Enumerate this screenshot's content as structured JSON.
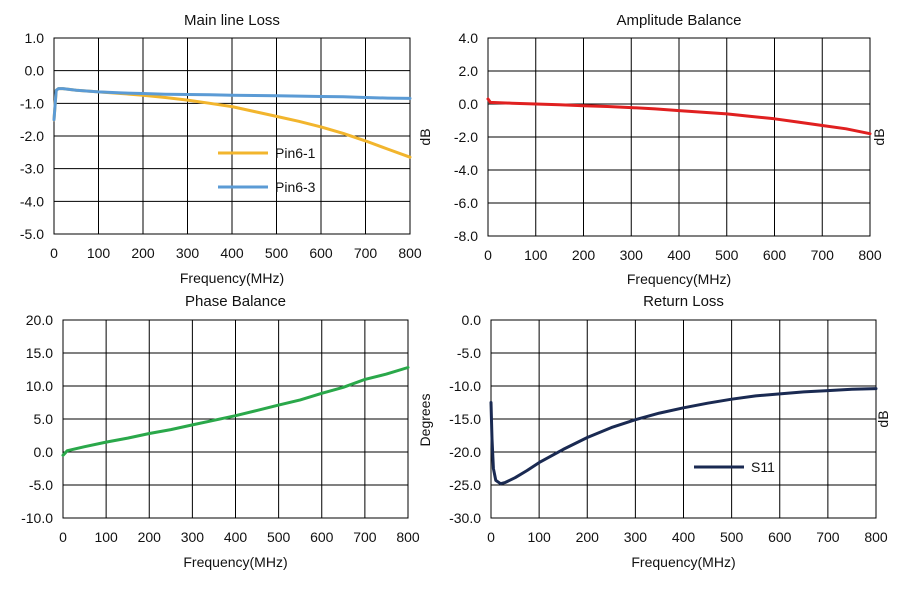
{
  "chart_data": [
    {
      "id": "main-line-loss",
      "type": "line",
      "title": "Main line Loss",
      "xlabel": "Frequency(MHz)",
      "ylabel": "",
      "xlim": [
        0,
        800
      ],
      "ylim": [
        -5.0,
        1.0
      ],
      "xticks": [
        0,
        100,
        200,
        300,
        400,
        500,
        600,
        700,
        800
      ],
      "yticks": [
        1.0,
        0.0,
        -1.0,
        -2.0,
        -3.0,
        -4.0,
        -5.0
      ],
      "xtick_labels": [
        "0",
        "100",
        "200",
        "300",
        "400",
        "500",
        "600",
        "700",
        "800"
      ],
      "ytick_labels": [
        "1.0",
        "0.0",
        "-1.0",
        "-2.0",
        "-3.0",
        "-4.0",
        "-5.0"
      ],
      "grid": true,
      "legend": "center",
      "series": [
        {
          "name": "Pin6-1",
          "color": "#f2b52d",
          "x": [
            0,
            5,
            10,
            20,
            50,
            100,
            150,
            200,
            250,
            300,
            350,
            400,
            450,
            500,
            550,
            600,
            650,
            700,
            750,
            800
          ],
          "values": [
            -1.5,
            -0.6,
            -0.55,
            -0.55,
            -0.6,
            -0.65,
            -0.7,
            -0.75,
            -0.82,
            -0.9,
            -1.0,
            -1.1,
            -1.25,
            -1.4,
            -1.55,
            -1.72,
            -1.92,
            -2.15,
            -2.4,
            -2.65
          ]
        },
        {
          "name": "Pin6-3",
          "color": "#5b9bd5",
          "x": [
            0,
            5,
            10,
            20,
            50,
            100,
            150,
            200,
            250,
            300,
            350,
            400,
            450,
            500,
            550,
            600,
            650,
            700,
            750,
            800
          ],
          "values": [
            -1.5,
            -0.6,
            -0.55,
            -0.55,
            -0.6,
            -0.65,
            -0.68,
            -0.7,
            -0.72,
            -0.73,
            -0.74,
            -0.75,
            -0.76,
            -0.77,
            -0.78,
            -0.79,
            -0.8,
            -0.82,
            -0.84,
            -0.85
          ]
        }
      ]
    },
    {
      "id": "amplitude-balance",
      "type": "line",
      "title": "Amplitude Balance",
      "xlabel": "Frequency(MHz)",
      "ylabel": "dB",
      "xlim": [
        0,
        800
      ],
      "ylim": [
        -8.0,
        4.0
      ],
      "xticks": [
        0,
        100,
        200,
        300,
        400,
        500,
        600,
        700,
        800
      ],
      "yticks": [
        4.0,
        2.0,
        0.0,
        -2.0,
        -4.0,
        -6.0,
        -8.0
      ],
      "xtick_labels": [
        "0",
        "100",
        "200",
        "300",
        "400",
        "500",
        "600",
        "700",
        "800"
      ],
      "ytick_labels": [
        "4.0",
        "2.0",
        "0.0",
        "-2.0",
        "-4.0",
        "-6.0",
        "-8.0"
      ],
      "grid": true,
      "series": [
        {
          "name": "Amplitude Balance",
          "color": "#e02020",
          "x": [
            0,
            5,
            50,
            100,
            150,
            200,
            250,
            300,
            350,
            400,
            450,
            500,
            550,
            600,
            650,
            700,
            750,
            800
          ],
          "values": [
            0.3,
            0.1,
            0.05,
            0.0,
            -0.05,
            -0.1,
            -0.15,
            -0.22,
            -0.3,
            -0.4,
            -0.5,
            -0.6,
            -0.75,
            -0.9,
            -1.1,
            -1.3,
            -1.5,
            -1.8
          ]
        }
      ]
    },
    {
      "id": "phase-balance",
      "type": "line",
      "title": "Phase Balance",
      "xlabel": "Frequency(MHz)",
      "ylabel": "Degrees",
      "xlim": [
        0,
        800
      ],
      "ylim": [
        -10.0,
        20.0
      ],
      "xticks": [
        0,
        100,
        200,
        300,
        400,
        500,
        600,
        700,
        800
      ],
      "yticks": [
        20.0,
        15.0,
        10.0,
        5.0,
        0.0,
        -5.0,
        -10.0
      ],
      "xtick_labels": [
        "0",
        "100",
        "200",
        "300",
        "400",
        "500",
        "600",
        "700",
        "800"
      ],
      "ytick_labels": [
        "20.0",
        "15.0",
        "10.0",
        "5.0",
        "0.0",
        "-5.0",
        "-10.0"
      ],
      "grid": true,
      "series": [
        {
          "name": "Phase Balance",
          "color": "#2aa84a",
          "x": [
            0,
            10,
            50,
            100,
            150,
            200,
            250,
            300,
            350,
            400,
            450,
            500,
            550,
            600,
            650,
            700,
            750,
            800
          ],
          "values": [
            -0.5,
            0.2,
            0.8,
            1.5,
            2.1,
            2.8,
            3.4,
            4.1,
            4.8,
            5.5,
            6.3,
            7.1,
            7.9,
            8.9,
            9.8,
            11.0,
            11.8,
            12.8
          ]
        }
      ]
    },
    {
      "id": "return-loss",
      "type": "line",
      "title": "Return Loss",
      "xlabel": "Frequency(MHz)",
      "ylabel": "dB",
      "xlim": [
        0,
        800
      ],
      "ylim": [
        -30.0,
        0.0
      ],
      "xticks": [
        0,
        100,
        200,
        300,
        400,
        500,
        600,
        700,
        800
      ],
      "yticks": [
        0.0,
        -5.0,
        -10.0,
        -15.0,
        -20.0,
        -25.0,
        -30.0
      ],
      "xtick_labels": [
        "0",
        "100",
        "200",
        "300",
        "400",
        "500",
        "600",
        "700",
        "800"
      ],
      "ytick_labels": [
        "0.0",
        "-5.0",
        "-10.0",
        "-15.0",
        "-20.0",
        "-25.0",
        "-30.0"
      ],
      "grid": true,
      "legend": "center",
      "series": [
        {
          "name": "S11",
          "color": "#1a2a52",
          "x": [
            0,
            2,
            5,
            10,
            20,
            30,
            50,
            75,
            100,
            150,
            200,
            250,
            300,
            350,
            400,
            450,
            500,
            550,
            600,
            650,
            700,
            750,
            800
          ],
          "values": [
            -12.5,
            -18.0,
            -22.5,
            -24.3,
            -24.8,
            -24.6,
            -23.9,
            -22.8,
            -21.6,
            -19.6,
            -17.8,
            -16.3,
            -15.1,
            -14.1,
            -13.3,
            -12.6,
            -12.0,
            -11.5,
            -11.2,
            -10.9,
            -10.7,
            -10.5,
            -10.4
          ]
        }
      ]
    }
  ]
}
